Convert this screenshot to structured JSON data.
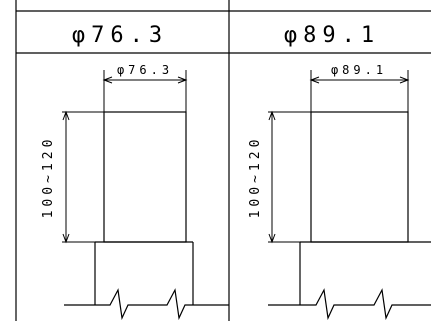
{
  "columns": [
    {
      "header": "φ76.3",
      "width_label": "φ76.3",
      "height_label": "100~120"
    },
    {
      "header": "φ89.1",
      "width_label": "φ89.1",
      "height_label": "100~120"
    }
  ]
}
